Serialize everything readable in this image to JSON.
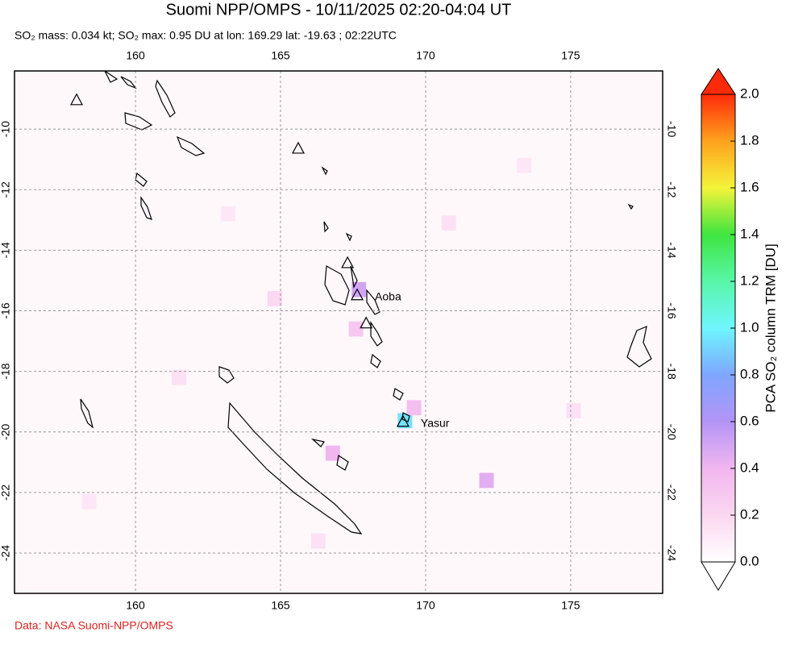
{
  "chart_data": {
    "type": "map",
    "title": "Suomi NPP/OMPS - 10/11/2025 02:20-04:04 UT",
    "subtitle": "SO₂ mass: 0.034 kt; SO₂ max: 0.95 DU at lon: 169.29 lat: -19.63 ; 02:22UTC",
    "source": "Data: NASA Suomi-NPP/OMPS",
    "xlim": [
      155.83,
      178.17
    ],
    "ylim": [
      -25.33,
      -8.08
    ],
    "xticks": [
      160,
      165,
      170,
      175
    ],
    "yticks": [
      -10,
      -12,
      -14,
      -16,
      -18,
      -20,
      -22,
      -24
    ],
    "grid": true,
    "colorbar": {
      "label": "PCA SO₂ column TRM [DU]",
      "clim": [
        0,
        2
      ],
      "ticks": [
        {
          "value": 0,
          "label": "0.0"
        },
        0.2,
        0.4,
        0.6,
        0.8,
        {
          "value": 1,
          "label": "1.0"
        },
        1.2,
        1.4,
        1.6,
        1.8,
        {
          "value": 2,
          "label": "2.0"
        }
      ],
      "colormap": [
        "#ffffff",
        "#fbd7f0",
        "#f1b6ef",
        "#b394f6",
        "#7fa6ff",
        "#6ff6ff",
        "#58f6a8",
        "#3fe53f",
        "#f4f43a",
        "#ffa21d",
        "#ff2a0a"
      ]
    },
    "pixels": [
      {
        "lon": 169.29,
        "lat": -19.63,
        "value": 0.95
      },
      {
        "lon": 167.7,
        "lat": -15.3,
        "value": 0.5
      },
      {
        "lon": 169.6,
        "lat": -19.2,
        "value": 0.35
      },
      {
        "lon": 166.8,
        "lat": -20.7,
        "value": 0.4
      },
      {
        "lon": 172.1,
        "lat": -21.6,
        "value": 0.45
      },
      {
        "lon": 167.6,
        "lat": -16.6,
        "value": 0.3
      },
      {
        "lon": 164.8,
        "lat": -15.6,
        "value": 0.2
      },
      {
        "lon": 170.8,
        "lat": -13.1,
        "value": 0.15
      },
      {
        "lon": 161.5,
        "lat": -18.2,
        "value": 0.15
      },
      {
        "lon": 175.1,
        "lat": -19.3,
        "value": 0.15
      },
      {
        "lon": 158.4,
        "lat": -22.3,
        "value": 0.12
      },
      {
        "lon": 166.3,
        "lat": -23.6,
        "value": 0.15
      },
      {
        "lon": 173.4,
        "lat": -11.2,
        "value": 0.12
      },
      {
        "lon": 163.2,
        "lat": -12.8,
        "value": 0.12
      }
    ],
    "volcanoes": [
      {
        "lon": 157.97,
        "lat": -9.06
      },
      {
        "lon": 165.61,
        "lat": -10.66
      },
      {
        "lon": 167.31,
        "lat": -14.44
      },
      {
        "lon": 167.64,
        "lat": -15.5,
        "label": "Aoba"
      },
      {
        "lon": 167.95,
        "lat": -16.43
      },
      {
        "lon": 169.22,
        "lat": -19.68,
        "label": "Yasur"
      }
    ]
  }
}
